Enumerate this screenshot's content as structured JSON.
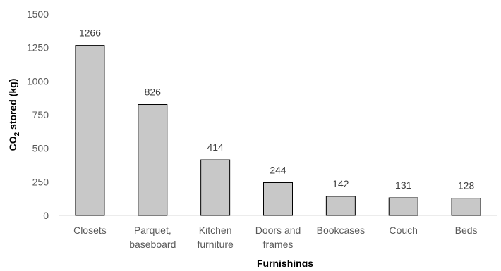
{
  "chart_data": {
    "type": "bar",
    "categories": [
      [
        "Closets"
      ],
      [
        "Parquet,",
        "baseboard"
      ],
      [
        "Kitchen",
        "furniture"
      ],
      [
        "Doors and",
        "frames"
      ],
      [
        "Bookcases"
      ],
      [
        "Couch"
      ],
      [
        "Beds"
      ]
    ],
    "values": [
      1266,
      826,
      414,
      244,
      142,
      131,
      128
    ],
    "data_labels": [
      "1266",
      "826",
      "414",
      "244",
      "142",
      "131",
      "128"
    ],
    "xlabel": "Furnishings",
    "ylabel": {
      "prefix": "CO",
      "subscript": "2",
      "suffix": " stored (kg)"
    },
    "ylim": [
      0,
      1500
    ],
    "yticks": [
      0,
      250,
      500,
      750,
      1000,
      1250,
      1500
    ],
    "grid": false,
    "bar_color": "#c8c8c8",
    "bar_edge_color": "#000000"
  }
}
